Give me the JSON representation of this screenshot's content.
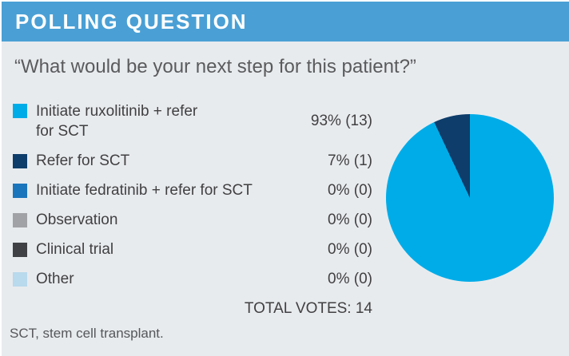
{
  "header": {
    "title": "POLLING QUESTION",
    "bg_color": "#4aa0d5",
    "text_color": "#ffffff"
  },
  "question": "“What would be your next step for this patient?”",
  "legend": {
    "items": [
      {
        "label": "Initiate ruxolitinib + refer\nfor SCT",
        "value": "93% (13)",
        "color": "#00ace8",
        "swatch_icon": "square-swatch-icon"
      },
      {
        "label": "Refer for SCT",
        "value": "7% (1)",
        "color": "#0e3d6b",
        "swatch_icon": "square-swatch-icon"
      },
      {
        "label": "Initiate fedratinib + refer for SCT",
        "value": "0% (0)",
        "color": "#1b75bc",
        "swatch_icon": "square-swatch-icon"
      },
      {
        "label": "Observation",
        "value": "0% (0)",
        "color": "#a0a2a5",
        "swatch_icon": "square-swatch-icon"
      },
      {
        "label": "Clinical trial",
        "value": "0% (0)",
        "color": "#3f4144",
        "swatch_icon": "square-swatch-icon"
      },
      {
        "label": "Other",
        "value": "0% (0)",
        "color": "#b9d9ec",
        "swatch_icon": "square-swatch-icon"
      }
    ],
    "total_label": "TOTAL VOTES: 14"
  },
  "footnote": "SCT, stem cell transplant.",
  "colors": {
    "card_bg": "#e8ebee",
    "text_dark": "#414042",
    "text_question": "#5a5b5d"
  },
  "chart_data": {
    "type": "pie",
    "title": "POLLING QUESTION",
    "subtitle": "“What would be your next step for this patient?”",
    "categories": [
      "Initiate ruxolitinib + refer for SCT",
      "Refer for SCT",
      "Initiate fedratinib + refer for SCT",
      "Observation",
      "Clinical trial",
      "Other"
    ],
    "values_percent": [
      93,
      7,
      0,
      0,
      0,
      0
    ],
    "counts": [
      13,
      1,
      0,
      0,
      0,
      0
    ],
    "total_votes": 14,
    "colors": [
      "#00ace8",
      "#0e3d6b",
      "#1b75bc",
      "#a0a2a5",
      "#3f4144",
      "#b9d9ec"
    ],
    "start_angle_deg": 0,
    "direction": "clockwise",
    "legend_position": "left",
    "annotations": [
      "93% (13)",
      "7% (1)",
      "0% (0)",
      "0% (0)",
      "0% (0)",
      "0% (0)",
      "TOTAL VOTES: 14"
    ]
  }
}
